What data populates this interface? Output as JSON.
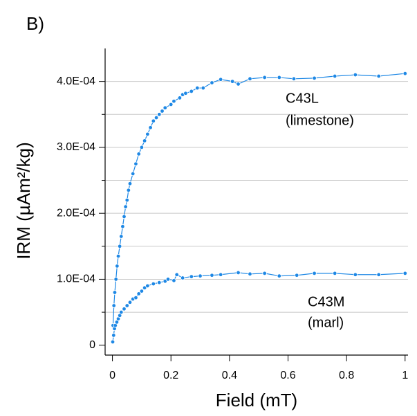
{
  "chart_data": {
    "type": "line",
    "panel_label": "B)",
    "x_label": "Field (mT)",
    "y_label": "IRM (µAm²/kg)",
    "xlim": [
      -0.025,
      1.01
    ],
    "xticks": [
      0,
      0.2,
      0.4,
      0.6,
      0.8,
      1
    ],
    "ylim": [
      -1.5e-05,
      0.00045
    ],
    "yticks": [
      0,
      {
        "value": 0.0001,
        "label": "1.0E-04"
      },
      {
        "value": 0.0002,
        "label": "2.0E-04"
      },
      {
        "value": 0.0003,
        "label": "3.0E-04"
      },
      {
        "value": 0.0004,
        "label": "4.0E-04"
      }
    ],
    "yminor": [
      5e-05,
      0.00015,
      0.00025,
      0.00035
    ],
    "grid": true,
    "annotations": [
      "C43L",
      "(limestone)",
      "C43M",
      "(marl)"
    ],
    "series": [
      {
        "color": "#1e88e5",
        "x": [
          0.002,
          0.005,
          0.008,
          0.012,
          0.016,
          0.02,
          0.025,
          0.03,
          0.035,
          0.04,
          0.045,
          0.05,
          0.055,
          0.06,
          0.07,
          0.08,
          0.09,
          0.1,
          0.11,
          0.12,
          0.13,
          0.14,
          0.15,
          0.16,
          0.17,
          0.18,
          0.2,
          0.21,
          0.23,
          0.24,
          0.25,
          0.27,
          0.29,
          0.31,
          0.34,
          0.37,
          0.41,
          0.43,
          0.47,
          0.52,
          0.57,
          0.62,
          0.69,
          0.76,
          0.83,
          0.91,
          1.0
        ],
        "values": [
          3e-05,
          6e-05,
          8e-05,
          0.0001,
          0.00012,
          0.000135,
          0.00015,
          0.000165,
          0.00018,
          0.000195,
          0.00021,
          0.00022,
          0.000235,
          0.000245,
          0.00026,
          0.000275,
          0.00029,
          0.0003,
          0.00031,
          0.00032,
          0.00033,
          0.00034,
          0.000345,
          0.00035,
          0.000355,
          0.00036,
          0.000365,
          0.00037,
          0.000375,
          0.00038,
          0.000382,
          0.000385,
          0.00039,
          0.00039,
          0.000398,
          0.000403,
          0.0004,
          0.000396,
          0.000404,
          0.000406,
          0.000406,
          0.000404,
          0.000405,
          0.000408,
          0.00041,
          0.000408,
          0.000412
        ]
      },
      {
        "color": "#1e88e5",
        "x": [
          0.001,
          0.004,
          0.007,
          0.01,
          0.015,
          0.02,
          0.025,
          0.03,
          0.04,
          0.05,
          0.06,
          0.07,
          0.08,
          0.09,
          0.1,
          0.11,
          0.12,
          0.14,
          0.16,
          0.18,
          0.19,
          0.21,
          0.22,
          0.24,
          0.27,
          0.3,
          0.34,
          0.37,
          0.43,
          0.47,
          0.52,
          0.57,
          0.63,
          0.69,
          0.76,
          0.83,
          0.91,
          1.0
        ],
        "values": [
          5e-06,
          1.5e-05,
          2.5e-05,
          3e-05,
          3.5e-05,
          4e-05,
          4.5e-05,
          5e-05,
          5.5e-05,
          6e-05,
          6.5e-05,
          7e-05,
          7.2e-05,
          7.8e-05,
          8.2e-05,
          8.7e-05,
          9e-05,
          9.3e-05,
          9.5e-05,
          9.7e-05,
          0.0001,
          9.8e-05,
          0.000107,
          0.000102,
          0.000104,
          0.000105,
          0.000106,
          0.000107,
          0.00011,
          0.000108,
          0.000109,
          0.000105,
          0.000106,
          0.000109,
          0.000109,
          0.000107,
          0.000107,
          0.000109
        ]
      }
    ]
  }
}
